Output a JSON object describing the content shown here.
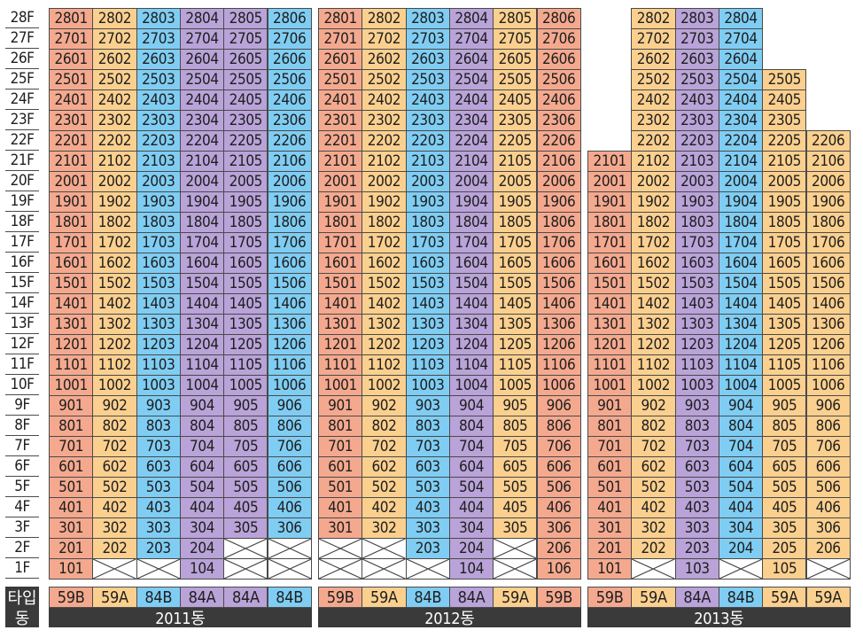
{
  "colors": {
    "59B": "#f4a98f",
    "59A": "#fbd08f",
    "84B": "#7fcdf3",
    "84A": "#b9a3d8",
    "empty": "#ffffff",
    "dark": "#3a3a3a"
  },
  "icon": "crossed-box-icon",
  "labels": {
    "type_row": "타입",
    "building_row": "동"
  },
  "floors": [
    "28F",
    "27F",
    "26F",
    "25F",
    "24F",
    "23F",
    "22F",
    "21F",
    "20F",
    "19F",
    "18F",
    "17F",
    "16F",
    "15F",
    "14F",
    "13F",
    "12F",
    "11F",
    "10F",
    "9F",
    "8F",
    "7F",
    "6F",
    "5F",
    "4F",
    "3F",
    "2F",
    "1F"
  ],
  "buildings": [
    {
      "name": "2011동",
      "types": [
        "59B",
        "59A",
        "84B",
        "84A",
        "84A",
        "84B"
      ],
      "cells": [
        [
          "2801",
          "2802",
          "2803",
          "2804",
          "2805",
          "2806"
        ],
        [
          "2701",
          "2702",
          "2703",
          "2704",
          "2705",
          "2706"
        ],
        [
          "2601",
          "2602",
          "2603",
          "2604",
          "2605",
          "2606"
        ],
        [
          "2501",
          "2502",
          "2503",
          "2504",
          "2505",
          "2506"
        ],
        [
          "2401",
          "2402",
          "2403",
          "2404",
          "2405",
          "2406"
        ],
        [
          "2301",
          "2302",
          "2303",
          "2304",
          "2305",
          "2306"
        ],
        [
          "2201",
          "2202",
          "2203",
          "2204",
          "2205",
          "2206"
        ],
        [
          "2101",
          "2102",
          "2103",
          "2104",
          "2105",
          "2106"
        ],
        [
          "2001",
          "2002",
          "2003",
          "2004",
          "2005",
          "2006"
        ],
        [
          "1901",
          "1902",
          "1903",
          "1904",
          "1905",
          "1906"
        ],
        [
          "1801",
          "1802",
          "1803",
          "1804",
          "1805",
          "1806"
        ],
        [
          "1701",
          "1702",
          "1703",
          "1704",
          "1705",
          "1706"
        ],
        [
          "1601",
          "1602",
          "1603",
          "1604",
          "1605",
          "1606"
        ],
        [
          "1501",
          "1502",
          "1503",
          "1504",
          "1505",
          "1506"
        ],
        [
          "1401",
          "1402",
          "1403",
          "1404",
          "1405",
          "1406"
        ],
        [
          "1301",
          "1302",
          "1303",
          "1304",
          "1305",
          "1306"
        ],
        [
          "1201",
          "1202",
          "1203",
          "1204",
          "1205",
          "1206"
        ],
        [
          "1101",
          "1102",
          "1103",
          "1104",
          "1105",
          "1106"
        ],
        [
          "1001",
          "1002",
          "1003",
          "1004",
          "1005",
          "1006"
        ],
        [
          "901",
          "902",
          "903",
          "904",
          "905",
          "906"
        ],
        [
          "801",
          "802",
          "803",
          "804",
          "805",
          "806"
        ],
        [
          "701",
          "702",
          "703",
          "704",
          "705",
          "706"
        ],
        [
          "601",
          "602",
          "603",
          "604",
          "605",
          "606"
        ],
        [
          "501",
          "502",
          "503",
          "504",
          "505",
          "506"
        ],
        [
          "401",
          "402",
          "403",
          "404",
          "405",
          "406"
        ],
        [
          "301",
          "302",
          "303",
          "304",
          "305",
          "306"
        ],
        [
          "201",
          "202",
          "203",
          "204",
          "x",
          "x"
        ],
        [
          "101",
          "x",
          "x",
          "104",
          "x",
          "x"
        ]
      ]
    },
    {
      "name": "2012동",
      "types": [
        "59B",
        "59A",
        "84B",
        "84A",
        "59A",
        "59B"
      ],
      "cells": [
        [
          "2801",
          "2802",
          "2803",
          "2804",
          "2805",
          "2806"
        ],
        [
          "2701",
          "2702",
          "2703",
          "2704",
          "2705",
          "2706"
        ],
        [
          "2601",
          "2602",
          "2603",
          "2604",
          "2605",
          "2606"
        ],
        [
          "2501",
          "2502",
          "2503",
          "2504",
          "2505",
          "2506"
        ],
        [
          "2401",
          "2402",
          "2403",
          "2404",
          "2405",
          "2406"
        ],
        [
          "2301",
          "2302",
          "2303",
          "2304",
          "2305",
          "2306"
        ],
        [
          "2201",
          "2202",
          "2203",
          "2204",
          "2205",
          "2206"
        ],
        [
          "2101",
          "2102",
          "2103",
          "2104",
          "2105",
          "2106"
        ],
        [
          "2001",
          "2002",
          "2003",
          "2004",
          "2005",
          "2006"
        ],
        [
          "1901",
          "1902",
          "1903",
          "1904",
          "1905",
          "1906"
        ],
        [
          "1801",
          "1802",
          "1803",
          "1804",
          "1805",
          "1806"
        ],
        [
          "1701",
          "1702",
          "1703",
          "1704",
          "1705",
          "1706"
        ],
        [
          "1601",
          "1602",
          "1603",
          "1604",
          "1605",
          "1606"
        ],
        [
          "1501",
          "1502",
          "1503",
          "1504",
          "1505",
          "1506"
        ],
        [
          "1401",
          "1402",
          "1403",
          "1404",
          "1405",
          "1406"
        ],
        [
          "1301",
          "1302",
          "1303",
          "1304",
          "1305",
          "1306"
        ],
        [
          "1201",
          "1202",
          "1203",
          "1204",
          "1205",
          "1206"
        ],
        [
          "1101",
          "1102",
          "1103",
          "1104",
          "1105",
          "1106"
        ],
        [
          "1001",
          "1002",
          "1003",
          "1004",
          "1005",
          "1006"
        ],
        [
          "901",
          "902",
          "903",
          "904",
          "905",
          "906"
        ],
        [
          "801",
          "802",
          "803",
          "804",
          "805",
          "806"
        ],
        [
          "701",
          "702",
          "703",
          "704",
          "705",
          "706"
        ],
        [
          "601",
          "602",
          "603",
          "604",
          "605",
          "606"
        ],
        [
          "501",
          "502",
          "503",
          "504",
          "505",
          "506"
        ],
        [
          "401",
          "402",
          "403",
          "404",
          "405",
          "406"
        ],
        [
          "301",
          "302",
          "303",
          "304",
          "305",
          "306"
        ],
        [
          "x",
          "x",
          "203",
          "204",
          "x",
          "206"
        ],
        [
          "x",
          "x",
          "x",
          "104",
          "x",
          "106"
        ]
      ]
    },
    {
      "name": "2013동",
      "types": [
        "59B",
        "59A",
        "84A",
        "84B",
        "59A",
        "59A"
      ],
      "cells": [
        [
          "",
          "2802",
          "2803",
          "2804",
          "",
          ""
        ],
        [
          "",
          "2702",
          "2703",
          "2704",
          "",
          ""
        ],
        [
          "",
          "2602",
          "2603",
          "2604",
          "",
          ""
        ],
        [
          "",
          "2502",
          "2503",
          "2504",
          "2505",
          ""
        ],
        [
          "",
          "2402",
          "2403",
          "2404",
          "2405",
          ""
        ],
        [
          "",
          "2302",
          "2303",
          "2304",
          "2305",
          ""
        ],
        [
          "",
          "2202",
          "2203",
          "2204",
          "2205",
          "2206"
        ],
        [
          "2101",
          "2102",
          "2103",
          "2104",
          "2105",
          "2106"
        ],
        [
          "2001",
          "2002",
          "2003",
          "2004",
          "2005",
          "2006"
        ],
        [
          "1901",
          "1902",
          "1903",
          "1904",
          "1905",
          "1906"
        ],
        [
          "1801",
          "1802",
          "1803",
          "1804",
          "1805",
          "1806"
        ],
        [
          "1701",
          "1702",
          "1703",
          "1704",
          "1705",
          "1706"
        ],
        [
          "1601",
          "1602",
          "1603",
          "1604",
          "1605",
          "1606"
        ],
        [
          "1501",
          "1502",
          "1503",
          "1504",
          "1505",
          "1506"
        ],
        [
          "1401",
          "1402",
          "1403",
          "1404",
          "1405",
          "1406"
        ],
        [
          "1301",
          "1302",
          "1303",
          "1304",
          "1305",
          "1306"
        ],
        [
          "1201",
          "1202",
          "1203",
          "1204",
          "1205",
          "1206"
        ],
        [
          "1101",
          "1102",
          "1103",
          "1104",
          "1105",
          "1106"
        ],
        [
          "1001",
          "1002",
          "1003",
          "1004",
          "1005",
          "1006"
        ],
        [
          "901",
          "902",
          "903",
          "904",
          "905",
          "906"
        ],
        [
          "801",
          "802",
          "803",
          "804",
          "805",
          "806"
        ],
        [
          "701",
          "702",
          "703",
          "704",
          "705",
          "706"
        ],
        [
          "601",
          "602",
          "603",
          "604",
          "605",
          "606"
        ],
        [
          "501",
          "502",
          "503",
          "504",
          "505",
          "506"
        ],
        [
          "401",
          "402",
          "403",
          "404",
          "405",
          "406"
        ],
        [
          "301",
          "302",
          "303",
          "304",
          "305",
          "306"
        ],
        [
          "201",
          "202",
          "203",
          "204",
          "205",
          "206"
        ],
        [
          "101",
          "x",
          "103",
          "x",
          "105",
          "x"
        ]
      ]
    }
  ]
}
